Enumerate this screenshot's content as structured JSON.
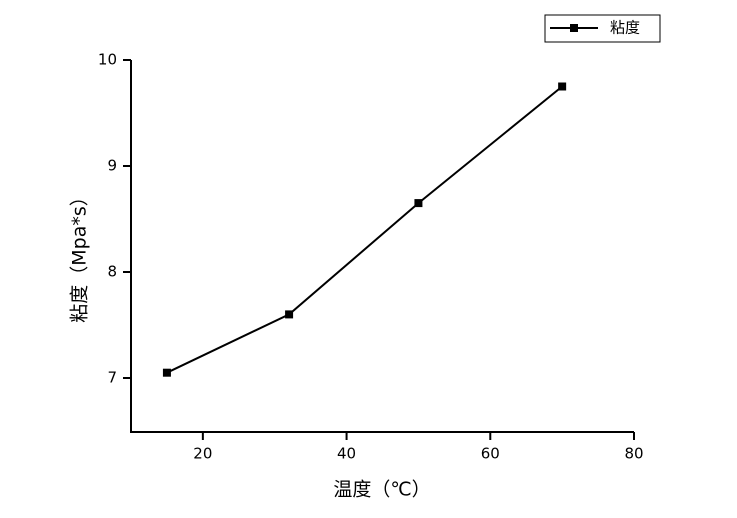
{
  "chart_data": {
    "type": "line",
    "x_label": "温度（℃）",
    "y_label": "粘度（Mpa*s）",
    "x": [
      15,
      32,
      50,
      70
    ],
    "series": [
      {
        "name": "粘度",
        "color": "#000000",
        "values": [
          7.05,
          7.6,
          8.65,
          9.75
        ]
      }
    ],
    "xlim": [
      10,
      80
    ],
    "xticks": [
      20,
      40,
      60,
      80
    ],
    "ylim": [
      6.5,
      10
    ],
    "yticks": [
      7,
      8,
      9,
      10
    ],
    "legend": "top-right",
    "grid": false
  }
}
